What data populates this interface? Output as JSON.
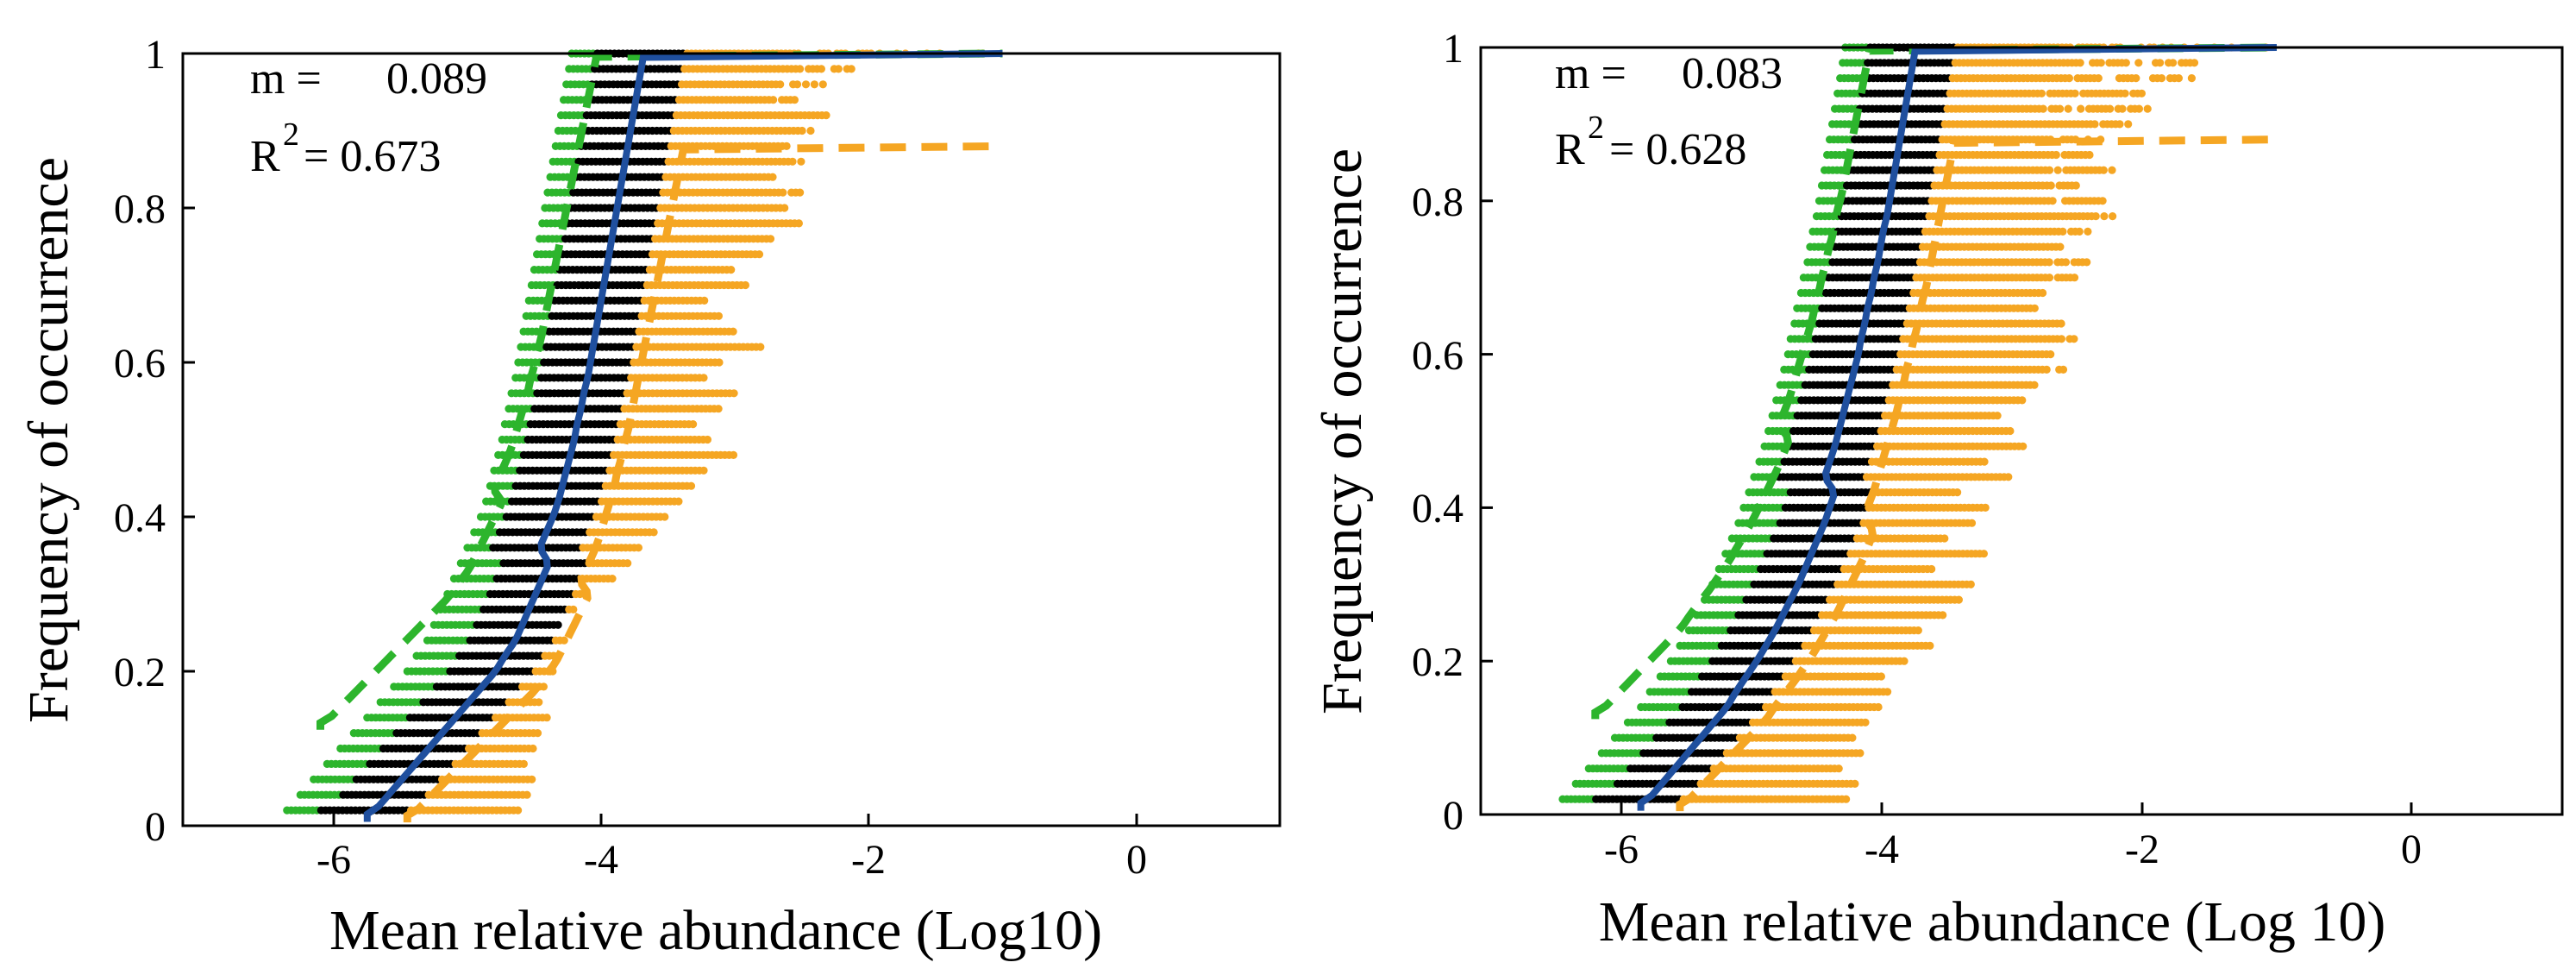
{
  "chart_data": [
    {
      "type": "scatter",
      "title": "",
      "xlabel": "Mean relative abundance (Log10)",
      "ylabel": "Frequency of occurrence",
      "xlim": [
        -7.1,
        1.1
      ],
      "ylim": [
        0,
        1
      ],
      "xticks": [
        -6,
        -4,
        -2,
        0
      ],
      "xtick_labels": [
        "-6",
        "-4",
        "-2",
        "0"
      ],
      "yticks": [
        0,
        0.2,
        0.4,
        0.6,
        0.8,
        1
      ],
      "ytick_labels": [
        "0",
        "0.2",
        "0.4",
        "0.6",
        "0.8",
        "1"
      ],
      "grid": false,
      "annotation": {
        "m_label": "m =",
        "m_value": "0.089",
        "r2_base": "R",
        "r2_exp": "2",
        "r2_value": "= 0.673"
      },
      "points_colors": {
        "black": "#000000",
        "green": "#2db52d",
        "orange": "#f5a623"
      },
      "fit": {
        "m": 0.089,
        "N": 111,
        "max": 1.0,
        "color": "#1f4f9e"
      },
      "upper_ci": {
        "shift": -0.35,
        "min": 0.12,
        "max": 1.0,
        "color": "#2db52d"
      },
      "lower_ci": {
        "shift": 0.3,
        "min": 0.0,
        "max": 0.88,
        "color": "#f5a623"
      },
      "spread": [
        -0.35,
        0.3
      ],
      "scatter_levels": {
        "freq": [
          0.02,
          0.04,
          0.06,
          0.08,
          0.1,
          0.12,
          0.14,
          0.16,
          0.18,
          0.2,
          0.22,
          0.24,
          0.26,
          0.28,
          0.3,
          0.32,
          0.34,
          0.36,
          0.38,
          0.4,
          0.42,
          0.44,
          0.46,
          0.48,
          0.5,
          0.52,
          0.54,
          0.56,
          0.58,
          0.6,
          0.62,
          0.64,
          0.66,
          0.68,
          0.7,
          0.72,
          0.74,
          0.76,
          0.78,
          0.8,
          0.82,
          0.84,
          0.86,
          0.88,
          0.9,
          0.92,
          0.94,
          0.96,
          0.98,
          1.0
        ],
        "x_min": [
          -6.35,
          -6.25,
          -6.15,
          -6.05,
          -5.95,
          -5.85,
          -5.75,
          -5.65,
          -5.55,
          -5.45,
          -5.38,
          -5.3,
          -5.25,
          -5.2,
          -5.15,
          -5.1,
          -5.05,
          -5.0,
          -4.95,
          -4.9,
          -4.86,
          -4.83,
          -4.8,
          -4.77,
          -4.74,
          -4.72,
          -4.69,
          -4.67,
          -4.64,
          -4.62,
          -4.6,
          -4.58,
          -4.56,
          -4.54,
          -4.52,
          -4.5,
          -4.48,
          -4.46,
          -4.44,
          -4.42,
          -4.4,
          -4.38,
          -4.36,
          -4.34,
          -4.32,
          -4.3,
          -4.28,
          -4.26,
          -4.24,
          -4.22
        ],
        "x_max": [
          -4.6,
          -4.55,
          -4.5,
          -4.55,
          -4.5,
          -4.45,
          -4.4,
          -4.45,
          -4.4,
          -4.35,
          -4.3,
          -4.25,
          -4.3,
          -4.2,
          -4.1,
          -3.9,
          -3.8,
          -3.7,
          -3.6,
          -3.5,
          -3.4,
          -3.3,
          -3.2,
          -3.0,
          -3.2,
          -3.3,
          -3.1,
          -3.0,
          -3.2,
          -3.1,
          -2.8,
          -3.0,
          -3.1,
          -3.2,
          -2.9,
          -3.0,
          -2.8,
          -2.7,
          -2.5,
          -2.6,
          -2.5,
          -2.7,
          -2.5,
          -2.6,
          -2.4,
          -2.3,
          -2.5,
          -2.3,
          -2.1,
          -1.0
        ]
      }
    },
    {
      "type": "scatter",
      "title": "",
      "xlabel": "Mean relative abundance (Log 10)",
      "ylabel": "Frequency of occurrence",
      "xlim": [
        -7.1,
        1.1
      ],
      "ylim": [
        0,
        1
      ],
      "xticks": [
        -6,
        -4,
        -2,
        0
      ],
      "xtick_labels": [
        "-6",
        "-4",
        "-2",
        "0"
      ],
      "yticks": [
        0,
        0.2,
        0.4,
        0.6,
        0.8,
        1
      ],
      "ytick_labels": [
        "0",
        "0.2",
        "0.4",
        "0.6",
        "0.8",
        "1"
      ],
      "grid": false,
      "annotation": {
        "m_label": "m =",
        "m_value": "0.083",
        "r2_base": "R",
        "r2_exp": "2",
        "r2_value": "= 0.628"
      },
      "points_colors": {
        "black": "#000000",
        "green": "#2db52d",
        "orange": "#f5a623"
      },
      "fit": {
        "m": 0.083,
        "N": 90,
        "max": 1.0,
        "color": "#1f4f9e"
      },
      "upper_ci": {
        "shift": -0.35,
        "min": 0.12,
        "max": 1.0,
        "color": "#2db52d"
      },
      "lower_ci": {
        "shift": 0.3,
        "min": 0.0,
        "max": 0.88,
        "color": "#f5a623"
      },
      "spread": [
        -0.35,
        0.3
      ],
      "scatter_levels": {
        "freq": [
          0.02,
          0.04,
          0.06,
          0.08,
          0.1,
          0.12,
          0.14,
          0.16,
          0.18,
          0.2,
          0.22,
          0.24,
          0.26,
          0.28,
          0.3,
          0.32,
          0.34,
          0.36,
          0.38,
          0.4,
          0.42,
          0.44,
          0.46,
          0.48,
          0.5,
          0.52,
          0.54,
          0.56,
          0.58,
          0.6,
          0.62,
          0.64,
          0.66,
          0.68,
          0.7,
          0.72,
          0.74,
          0.76,
          0.78,
          0.8,
          0.82,
          0.84,
          0.86,
          0.88,
          0.9,
          0.92,
          0.94,
          0.96,
          0.98,
          1.0
        ],
        "x_min": [
          -6.45,
          -6.35,
          -6.25,
          -6.15,
          -6.05,
          -5.95,
          -5.85,
          -5.78,
          -5.7,
          -5.62,
          -5.55,
          -5.48,
          -5.42,
          -5.36,
          -5.3,
          -5.25,
          -5.2,
          -5.15,
          -5.1,
          -5.06,
          -5.02,
          -4.98,
          -4.94,
          -4.9,
          -4.87,
          -4.84,
          -4.81,
          -4.78,
          -4.75,
          -4.72,
          -4.7,
          -4.67,
          -4.65,
          -4.62,
          -4.6,
          -4.57,
          -4.55,
          -4.53,
          -4.5,
          -4.48,
          -4.46,
          -4.44,
          -4.42,
          -4.4,
          -4.38,
          -4.36,
          -4.34,
          -4.32,
          -4.3,
          -4.28
        ],
        "x_max": [
          -4.25,
          -4.2,
          -4.3,
          -4.15,
          -4.2,
          -4.1,
          -4.0,
          -3.95,
          -4.0,
          -3.8,
          -3.6,
          -3.7,
          -3.5,
          -3.4,
          -3.3,
          -3.6,
          -3.2,
          -3.5,
          -3.3,
          -3.2,
          -3.4,
          -3.0,
          -3.2,
          -2.9,
          -3.0,
          -3.1,
          -2.9,
          -2.8,
          -2.6,
          -2.7,
          -2.5,
          -2.6,
          -2.8,
          -2.7,
          -2.5,
          -2.4,
          -2.6,
          -2.4,
          -2.2,
          -2.3,
          -2.5,
          -2.2,
          -2.4,
          -2.3,
          -2.1,
          -1.9,
          -2.0,
          -1.6,
          -1.5,
          -1.0
        ]
      }
    }
  ]
}
